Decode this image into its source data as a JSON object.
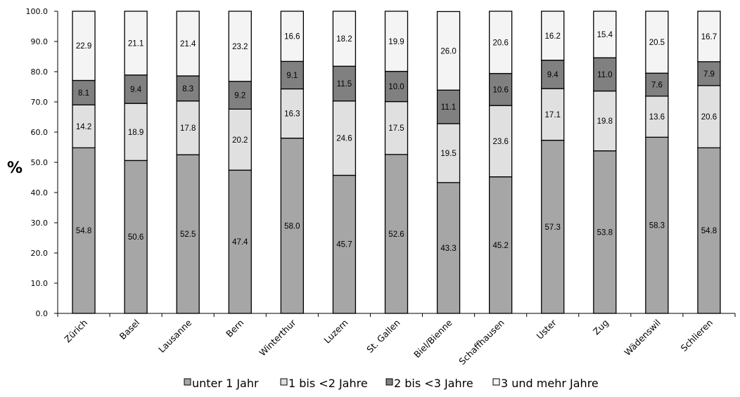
{
  "chart_data": {
    "type": "bar",
    "stacked": true,
    "categories": [
      "Zürich",
      "Basel",
      "Lausanne",
      "Bern",
      "Winterthur",
      "Luzern",
      "St. Gallen",
      "Biel/Bienne",
      "Schaffhausen",
      "Uster",
      "Zug",
      "Wädenswil",
      "Schlieren"
    ],
    "series": [
      {
        "name": "unter 1 Jahr",
        "color": "#a6a6a6",
        "values": [
          54.8,
          50.6,
          52.5,
          47.4,
          58.0,
          45.7,
          52.6,
          43.3,
          45.2,
          57.3,
          53.8,
          58.3,
          54.8
        ],
        "labels": [
          "54.8",
          "50.6",
          "52.5",
          "47.4",
          "58.0",
          "45.7",
          "52.6",
          "43.3",
          "45.2",
          "57.3",
          "53.8",
          "58.3",
          "54.8"
        ]
      },
      {
        "name": "1 bis <2 Jahre",
        "color": "#e0e0e0",
        "values": [
          14.2,
          18.9,
          17.8,
          20.2,
          16.3,
          24.6,
          17.5,
          19.5,
          23.6,
          17.1,
          19.8,
          13.6,
          20.6
        ],
        "labels": [
          "14.2",
          "18.9",
          "17.8",
          "20.2",
          "16.3",
          "24.6",
          "17.5",
          "19.5",
          "23.6",
          "17.1",
          "19.8",
          "13.6",
          "20.6"
        ]
      },
      {
        "name": "2 bis <3 Jahre",
        "color": "#808080",
        "values": [
          8.1,
          9.4,
          8.3,
          9.2,
          9.1,
          11.5,
          10.0,
          11.1,
          10.6,
          9.4,
          11.0,
          7.6,
          7.9
        ],
        "labels": [
          "8.1",
          "9.4",
          "8.3",
          "9.2",
          "9.1",
          "11.5",
          "10.0",
          "11.1",
          "10.6",
          "9.4",
          "11.0",
          "7.6",
          "7.9"
        ]
      },
      {
        "name": "3 und mehr Jahre",
        "color": "#f4f4f4",
        "values": [
          22.9,
          21.1,
          21.4,
          23.2,
          16.6,
          18.2,
          19.9,
          26.0,
          20.6,
          16.2,
          15.4,
          20.5,
          16.7
        ],
        "labels": [
          "22.9",
          "21.1",
          "21.4",
          "23.2",
          "16.6",
          "18.2",
          "19.9",
          "26.0",
          "20.6",
          "16.2",
          "15.4",
          "20.5",
          "16.7"
        ]
      }
    ],
    "ylabel": "%",
    "ylim": [
      0,
      100
    ],
    "yticks": [
      "0.0",
      "10.0",
      "20.0",
      "30.0",
      "40.0",
      "50.0",
      "60.0",
      "70.0",
      "80.0",
      "90.0",
      "100.0"
    ],
    "grid": false,
    "legend_position": "bottom"
  }
}
